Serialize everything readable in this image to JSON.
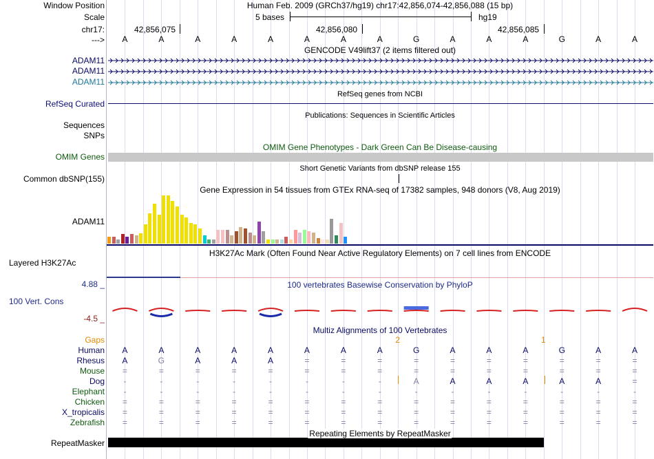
{
  "header": {
    "window_position_label": "Window Position",
    "scale_label": "Scale",
    "chr_label": "chr17:",
    "strand_label": "--->",
    "position_text": "Human Feb. 2009 (GRCh37/hg19)   chr17:42,856,074-42,856,088 (15 bp)",
    "scale_text": "5 bases",
    "assembly": "hg19",
    "coords": [
      "42,856,075",
      "42,856,080",
      "42,856,085"
    ]
  },
  "bases": [
    "A",
    "A",
    "A",
    "A",
    "A",
    "A",
    "A",
    "A",
    "G",
    "A",
    "A",
    "A",
    "G",
    "A",
    "A"
  ],
  "gencode": {
    "title": "GENCODE V49lift37 (2 items filtered out)",
    "rows": [
      {
        "name": "ADAM11",
        "color": "#0a0a64"
      },
      {
        "name": "ADAM11",
        "color": "#0a0a64"
      },
      {
        "name": "ADAM11",
        "color": "#1e7896"
      }
    ]
  },
  "refseq": {
    "title": "RefSeq genes from NCBI",
    "label": "RefSeq Curated",
    "color": "#0c0c78"
  },
  "publications": {
    "title": "Publications: Sequences in Scientific Articles",
    "label": "Sequences"
  },
  "snps_label": "SNPs",
  "omim": {
    "title": "OMIM Gene Phenotypes - Dark Green Can Be Disease-causing",
    "label": "OMIM Genes",
    "color": "#0f5a0f"
  },
  "dbsnp": {
    "title": "Short Genetic Variants from dbSNP release 155",
    "label": "Common dbSNP(155)"
  },
  "gtex": {
    "title": "Gene Expression in 54 tissues from GTEx RNA-seq of 17382 samples, 948 donors (V8, Aug 2019)",
    "label": "ADAM11",
    "values": [
      10,
      10,
      6,
      14,
      10,
      14,
      12,
      15,
      28,
      44,
      58,
      42,
      70,
      70,
      62,
      54,
      42,
      38,
      30,
      28,
      22,
      12,
      6,
      6,
      20,
      20,
      20,
      12,
      18,
      24,
      22,
      16,
      12,
      32,
      18,
      6,
      6,
      6,
      6,
      10,
      6,
      20,
      16,
      20,
      18,
      16,
      8,
      6,
      6,
      36,
      12,
      30,
      10
    ],
    "colors": [
      "#f39c12",
      "#cd5c5c",
      "#a0a0a0",
      "#b22222",
      "#6a1b9a",
      "#cd5c5c",
      "#d2b48c",
      "#f0e000",
      "#f0e000",
      "#f0e000",
      "#f0e000",
      "#f0e000",
      "#f0e000",
      "#f0e000",
      "#f0e000",
      "#f0e000",
      "#f0e000",
      "#f0e000",
      "#f0e000",
      "#f0e000",
      "#f0e000",
      "#00ced1",
      "#3cb371",
      "#a0a0a0",
      "#f4c2c2",
      "#f4c2c2",
      "#bc8f8f",
      "#d2b48c",
      "#a0522d",
      "#d2b48c",
      "#a0522d",
      "#bc8f8f",
      "#d2b48c",
      "#8e44ad",
      "#a0a0a0",
      "#f0e000",
      "#98fb98",
      "#d2b48c",
      "#b0e0e6",
      "#cd5c5c",
      "#ffd39b",
      "#ff9999",
      "#d8bfd8",
      "#98fb98",
      "#ffb6c1",
      "#d2b48c",
      "#cd853f",
      "#ffe4e1",
      "#f5deb3",
      "#999999",
      "#2e8b57",
      "#f4c2c2",
      "#1e90ff"
    ]
  },
  "h3k27ac": {
    "title": "H3K27Ac Mark (Often Found Near Active Regulatory Elements) on 7 cell lines from ENCODE",
    "label": "Layered H3K27Ac"
  },
  "phylop": {
    "title": "100 vertebrates Basewise Conservation by PhyloP",
    "label": "100 Vert. Cons",
    "max": "4.88 _",
    "min": "-4.5 _"
  },
  "multiz": {
    "title": "Multiz Alignments of 100 Vertebrates",
    "gaps_label": "Gaps",
    "gaps": [
      "",
      "",
      "",
      "",
      "",
      "",
      "",
      "2",
      "",
      "",
      "",
      "1",
      "",
      "",
      ""
    ],
    "species": [
      {
        "name": "Human",
        "color": "#0a0a64",
        "seq": [
          "A",
          "A",
          "A",
          "A",
          "A",
          "A",
          "A",
          "A",
          "G",
          "A",
          "A",
          "A",
          "G",
          "A",
          "A"
        ]
      },
      {
        "name": "Rhesus",
        "color": "#0a0a64",
        "seq": [
          "A",
          "G",
          "A",
          "A",
          "A",
          "=",
          "=",
          "=",
          "=",
          "=",
          "=",
          "=",
          "=",
          "=",
          "="
        ]
      },
      {
        "name": "Mouse",
        "color": "#0f5a0f",
        "seq": [
          "=",
          "=",
          "=",
          "=",
          "=",
          "=",
          "=",
          "=",
          "=",
          "=",
          "=",
          "=",
          "=",
          "=",
          "="
        ]
      },
      {
        "name": "Dog",
        "color": "#0a0a64",
        "seq": [
          "-",
          "-",
          "-",
          "-",
          "-",
          "-",
          "-",
          "-",
          "A",
          "A",
          "A",
          "A",
          "A",
          "A",
          "="
        ]
      },
      {
        "name": "Elephant",
        "color": "#0f5a0f",
        "seq": [
          "-",
          "-",
          "-",
          "-",
          "-",
          "-",
          "-",
          "-",
          "-",
          "-",
          "-",
          "-",
          "-",
          "-",
          "-"
        ]
      },
      {
        "name": "Chicken",
        "color": "#0f5a0f",
        "seq": [
          "=",
          "=",
          "=",
          "=",
          "=",
          "=",
          "=",
          "=",
          "=",
          "=",
          "=",
          "=",
          "=",
          "=",
          "="
        ]
      },
      {
        "name": "X_tropicalis",
        "color": "#0a0a64",
        "seq": [
          "=",
          "=",
          "=",
          "=",
          "=",
          "=",
          "=",
          "=",
          "=",
          "=",
          "=",
          "=",
          "=",
          "=",
          "="
        ]
      },
      {
        "name": "Zebrafish",
        "color": "#0f5a0f",
        "seq": [
          "=",
          "=",
          "=",
          "=",
          "=",
          "=",
          "=",
          "=",
          "=",
          "=",
          "=",
          "=",
          "=",
          "=",
          "="
        ]
      }
    ]
  },
  "repeatmasker": {
    "title": "Repeating Elements by RepeatMasker",
    "label": "RepeatMasker"
  }
}
